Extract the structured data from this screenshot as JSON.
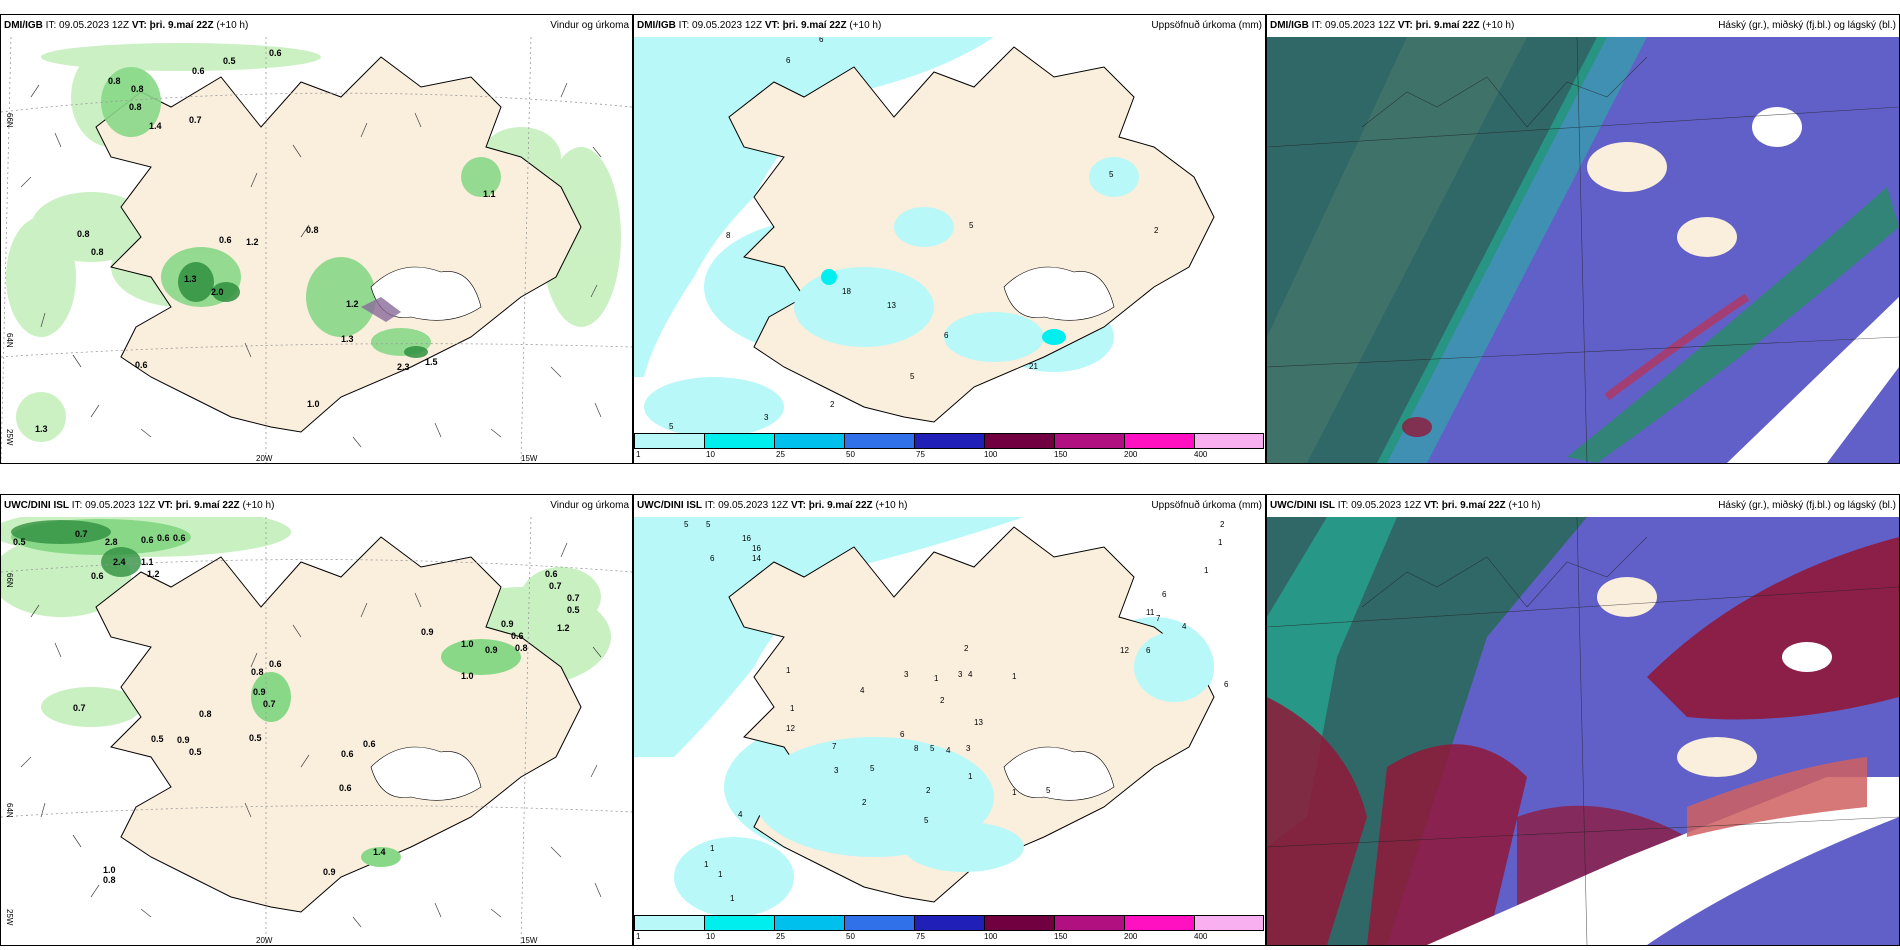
{
  "panels": [
    {
      "model": "DMI/IGB",
      "it": "IT: 09.05.2023 12Z",
      "vt": "VT: þri. 9.maí 22Z",
      "lead": "(+10 h)",
      "product": "Vindur og úrkoma"
    },
    {
      "model": "DMI/IGB",
      "it": "IT: 09.05.2023 12Z",
      "vt": "VT: þri. 9.maí 22Z",
      "lead": "(+10 h)",
      "product": "Uppsöfnuð úrkoma (mm)"
    },
    {
      "model": "DMI/IGB",
      "it": "IT: 09.05.2023 12Z",
      "vt": "VT: þri. 9.maí 22Z",
      "lead": "(+10 h)",
      "product": "Háský (gr.), miðský (fj.bl.) og lágský (bl.)"
    },
    {
      "model": "UWC/DINI ISL",
      "it": "IT: 09.05.2023 12Z",
      "vt": "VT: þri. 9.maí 22Z",
      "lead": "(+10 h)",
      "product": "Vindur og úrkoma"
    },
    {
      "model": "UWC/DINI ISL",
      "it": "IT: 09.05.2023 12Z",
      "vt": "VT: þri. 9.maí 22Z",
      "lead": "(+10 h)",
      "product": "Uppsöfnuð úrkoma (mm)"
    },
    {
      "model": "UWC/DINI ISL",
      "it": "IT: 09.05.2023 12Z",
      "vt": "VT: þri. 9.maí 22Z",
      "lead": "(+10 h)",
      "product": "Háský (gr.), miðský (fj.bl.) og lágský (bl.)"
    }
  ],
  "axis_labels": {
    "lat66": "66N",
    "lat64": "64N",
    "lon20": "20W",
    "lon15": "15W",
    "lon25": "25W"
  },
  "colorbar": {
    "ticks": [
      "1",
      "10",
      "25",
      "50",
      "75",
      "100",
      "150",
      "200",
      "400"
    ],
    "colors": [
      "#b8f8f8",
      "#00eeee",
      "#00c0ee",
      "#3070e8",
      "#2020b8",
      "#700040",
      "#b01080",
      "#ff10c0",
      "#f8b0f0"
    ]
  },
  "wind_top_labels": [
    "0.5",
    "0.6",
    "0.6",
    "0.8",
    "0.8",
    "0.8",
    "1.4",
    "0.7",
    "0.8",
    "0.8",
    "0.6",
    "1.2",
    "0.8",
    "1.1",
    "1.2",
    "1.3",
    "2.0",
    "0.6",
    "1.3",
    "2.3",
    "1.5",
    "1.0",
    "1.3"
  ],
  "wind_bottom_labels": [
    "0.5",
    "0.7",
    "2.8",
    "0.6",
    "0.6",
    "0.6",
    "2.4",
    "1.1",
    "1.2",
    "0.6",
    "0.7",
    "0.5",
    "0.9",
    "1.0",
    "0.9",
    "0.8",
    "0.6",
    "0.7",
    "1.2",
    "0.6",
    "0.9",
    "1.0",
    "0.7",
    "0.5",
    "0.8",
    "0.8",
    "0.6",
    "0.9",
    "0.5",
    "0.5",
    "0.7",
    "0.6",
    "1.4",
    "0.9",
    "1.0",
    "0.8",
    "0.6",
    "0.9",
    "0.6"
  ],
  "precip_top_labels": [
    "6",
    "6",
    "5",
    "5",
    "8",
    "2",
    "18",
    "13",
    "6",
    "5",
    "21",
    "2",
    "3",
    "5"
  ],
  "precip_bottom_labels": [
    "5",
    "5",
    "2",
    "1",
    "1",
    "16",
    "16",
    "14",
    "6",
    "6",
    "12",
    "11",
    "7",
    "4",
    "6",
    "2",
    "1",
    "4",
    "3",
    "3",
    "1",
    "2",
    "1",
    "1",
    "12",
    "4",
    "7",
    "13",
    "6",
    "8",
    "5",
    "4",
    "3",
    "5",
    "1",
    "3",
    "1",
    "5",
    "2",
    "2",
    "4",
    "1",
    "1",
    "1",
    "1",
    "6",
    "5"
  ],
  "colors": {
    "land": "#faeedd",
    "light_green": "#c8f0c0",
    "mid_green": "#88d888",
    "dark_green": "#309040",
    "cyan": "#b8f8f8",
    "purple": "#6060c8",
    "teal": "#306868",
    "crimson": "#901838"
  }
}
